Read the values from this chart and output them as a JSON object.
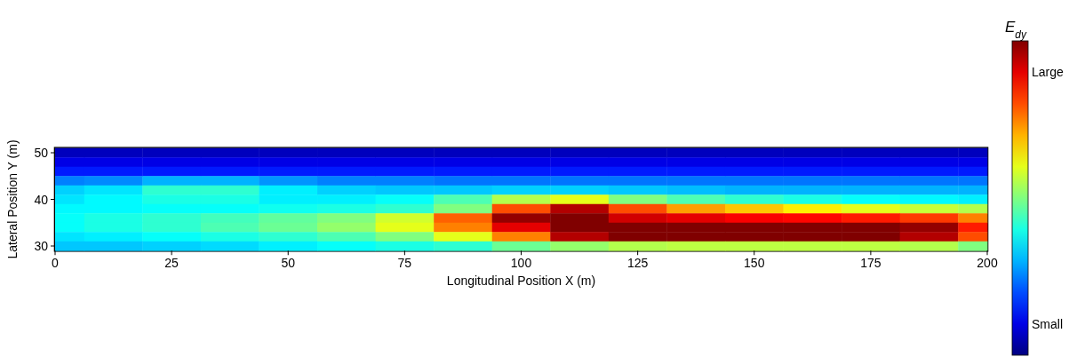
{
  "chart_data": {
    "type": "heatmap",
    "xlabel": "Longitudinal Position X (m)",
    "ylabel": "Lateral Position Y (m)",
    "clabel": "E$_{dy}$",
    "categories": [
      "0",
      null,
      "25",
      null,
      "50",
      null,
      "75",
      null,
      "100",
      null,
      "125",
      null,
      "150",
      null,
      "175",
      null,
      "200"
    ],
    "y_categories": [
      "50",
      null,
      null,
      null,
      null,
      "40",
      null,
      null,
      null,
      null,
      "30"
    ],
    "clim": [
      0,
      1
    ],
    "cticks": [
      {
        "value": 0.1,
        "label": "Small"
      },
      {
        "value": 0.9,
        "label": "Large"
      }
    ],
    "cells": [
      [
        0.06,
        0.06,
        0.06,
        0.06,
        0.06,
        0.06,
        0.06,
        0.06,
        0.06,
        0.06,
        0.06,
        0.06,
        0.06,
        0.06,
        0.06,
        0.06,
        0.06
      ],
      [
        0.1,
        0.1,
        0.1,
        0.1,
        0.1,
        0.1,
        0.1,
        0.1,
        0.1,
        0.1,
        0.1,
        0.1,
        0.1,
        0.1,
        0.1,
        0.1,
        0.1
      ],
      [
        0.15,
        0.15,
        0.15,
        0.15,
        0.15,
        0.15,
        0.15,
        0.15,
        0.15,
        0.15,
        0.15,
        0.15,
        0.15,
        0.15,
        0.15,
        0.15,
        0.15
      ],
      [
        0.25,
        0.26,
        0.3,
        0.3,
        0.27,
        0.25,
        0.25,
        0.24,
        0.24,
        0.24,
        0.24,
        0.24,
        0.24,
        0.24,
        0.24,
        0.24,
        0.24
      ],
      [
        0.33,
        0.35,
        0.42,
        0.42,
        0.36,
        0.33,
        0.32,
        0.32,
        0.33,
        0.33,
        0.32,
        0.31,
        0.3,
        0.3,
        0.3,
        0.3,
        0.3
      ],
      [
        0.35,
        0.37,
        0.4,
        0.4,
        0.36,
        0.36,
        0.38,
        0.45,
        0.55,
        0.6,
        0.5,
        0.45,
        0.42,
        0.4,
        0.38,
        0.37,
        0.36
      ],
      [
        0.37,
        0.37,
        0.38,
        0.38,
        0.39,
        0.4,
        0.42,
        0.5,
        0.8,
        0.95,
        0.8,
        0.72,
        0.68,
        0.64,
        0.6,
        0.57,
        0.55
      ],
      [
        0.38,
        0.4,
        0.42,
        0.44,
        0.47,
        0.5,
        0.58,
        0.78,
        0.98,
        1,
        0.92,
        0.9,
        0.88,
        0.87,
        0.85,
        0.82,
        0.75
      ],
      [
        0.38,
        0.4,
        0.42,
        0.45,
        0.48,
        0.52,
        0.6,
        0.75,
        0.9,
        1,
        1,
        1,
        1,
        1,
        1,
        0.98,
        0.85
      ],
      [
        0.35,
        0.36,
        0.38,
        0.4,
        0.42,
        0.45,
        0.5,
        0.6,
        0.75,
        0.95,
        1,
        1,
        1,
        1,
        1,
        0.95,
        0.8
      ],
      [
        0.32,
        0.32,
        0.33,
        0.34,
        0.36,
        0.38,
        0.4,
        0.42,
        0.48,
        0.52,
        0.55,
        0.56,
        0.56,
        0.56,
        0.56,
        0.55,
        0.5
      ]
    ]
  }
}
